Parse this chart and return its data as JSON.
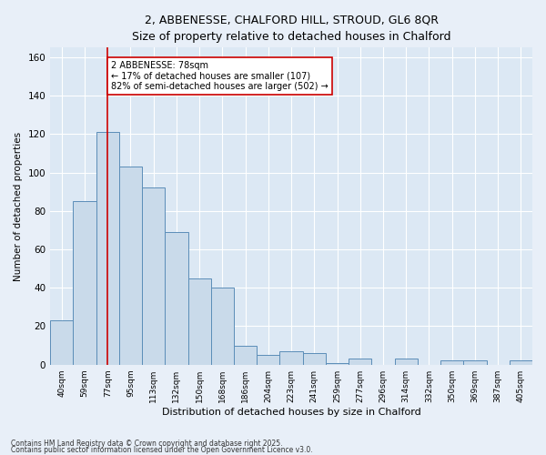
{
  "title_line1": "2, ABBENESSE, CHALFORD HILL, STROUD, GL6 8QR",
  "title_line2": "Size of property relative to detached houses in Chalford",
  "xlabel": "Distribution of detached houses by size in Chalford",
  "ylabel": "Number of detached properties",
  "bin_labels": [
    "40sqm",
    "59sqm",
    "77sqm",
    "95sqm",
    "113sqm",
    "132sqm",
    "150sqm",
    "168sqm",
    "186sqm",
    "204sqm",
    "223sqm",
    "241sqm",
    "259sqm",
    "277sqm",
    "296sqm",
    "314sqm",
    "332sqm",
    "350sqm",
    "369sqm",
    "387sqm",
    "405sqm"
  ],
  "bar_values": [
    23,
    85,
    121,
    103,
    92,
    69,
    45,
    40,
    10,
    5,
    7,
    6,
    1,
    3,
    0,
    3,
    0,
    2,
    2,
    0,
    2
  ],
  "bar_color": "#c9daea",
  "bar_edge_color": "#5b8db8",
  "red_line_x": 2,
  "red_line_color": "#cc0000",
  "annotation_text": "2 ABBENESSE: 78sqm\n← 17% of detached houses are smaller (107)\n82% of semi-detached houses are larger (502) →",
  "annotation_box_color": "#ffffff",
  "annotation_box_edge": "#cc0000",
  "ylim": [
    0,
    165
  ],
  "yticks": [
    0,
    20,
    40,
    60,
    80,
    100,
    120,
    140,
    160
  ],
  "bg_color": "#dce8f4",
  "fig_bg_color": "#e8eff8",
  "grid_color": "#ffffff",
  "footer_line1": "Contains HM Land Registry data © Crown copyright and database right 2025.",
  "footer_line2": "Contains public sector information licensed under the Open Government Licence v3.0."
}
